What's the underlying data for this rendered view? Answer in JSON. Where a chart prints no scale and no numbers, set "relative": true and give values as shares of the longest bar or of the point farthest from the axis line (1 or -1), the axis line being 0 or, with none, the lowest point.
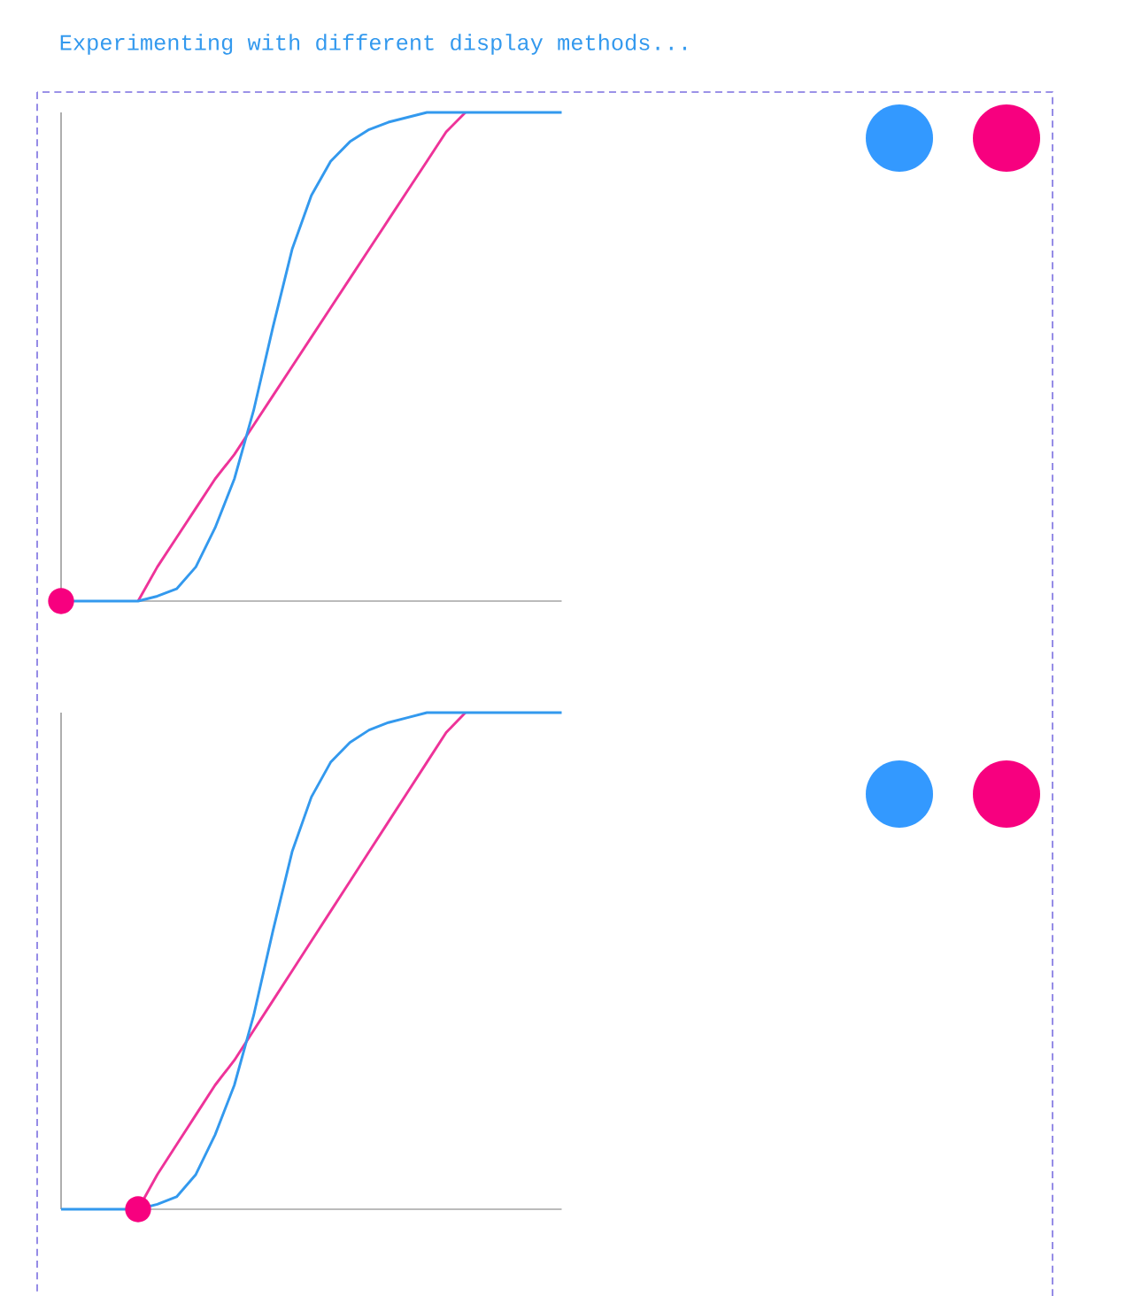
{
  "chart_data": [
    {
      "type": "line",
      "title": "Experimenting with different display methods...",
      "relative": true,
      "categories": [
        null,
        null,
        null,
        null,
        null,
        null,
        null,
        null,
        null,
        null,
        null,
        null,
        null,
        null,
        null,
        null,
        null,
        null,
        null,
        null,
        null,
        null,
        null,
        null,
        null,
        null,
        null
      ],
      "series": [
        {
          "color": "#ee3399",
          "values": [
            null,
            null,
            null,
            null,
            0,
            0.07,
            0.13,
            0.19,
            0.25,
            0.3,
            0.36,
            0.42,
            0.48,
            0.54,
            0.6,
            0.66,
            0.72,
            0.78,
            0.84,
            0.9,
            0.96,
            1,
            null,
            null,
            null,
            null,
            null
          ]
        },
        {
          "color": "#3399ee",
          "values": [
            0,
            0,
            0,
            0,
            0,
            0.01,
            0.025,
            0.07,
            0.15,
            0.25,
            0.39,
            0.56,
            0.72,
            0.83,
            0.9,
            0.94,
            0.965,
            0.98,
            0.99,
            1,
            1,
            1,
            1,
            1,
            1,
            1,
            1
          ]
        }
      ]
    },
    {
      "type": "line",
      "relative": true,
      "categories": [
        null,
        null,
        null,
        null,
        null,
        null,
        null,
        null,
        null,
        null,
        null,
        null,
        null,
        null,
        null,
        null,
        null,
        null,
        null,
        null,
        null,
        null,
        null,
        null,
        null,
        null,
        null
      ],
      "series": [
        {
          "color": "#ee3399",
          "values": [
            null,
            null,
            null,
            null,
            0,
            0.07,
            0.13,
            0.19,
            0.25,
            0.3,
            0.36,
            0.42,
            0.48,
            0.54,
            0.6,
            0.66,
            0.72,
            0.78,
            0.84,
            0.9,
            0.96,
            1,
            null,
            null,
            null,
            null,
            null
          ]
        },
        {
          "color": "#3399ee",
          "values": [
            0,
            0,
            0,
            0,
            0,
            0.01,
            0.025,
            0.07,
            0.15,
            0.25,
            0.39,
            0.56,
            0.72,
            0.83,
            0.9,
            0.94,
            0.965,
            0.98,
            0.99,
            1,
            1,
            1,
            1,
            1,
            1,
            1,
            1
          ]
        }
      ]
    }
  ]
}
